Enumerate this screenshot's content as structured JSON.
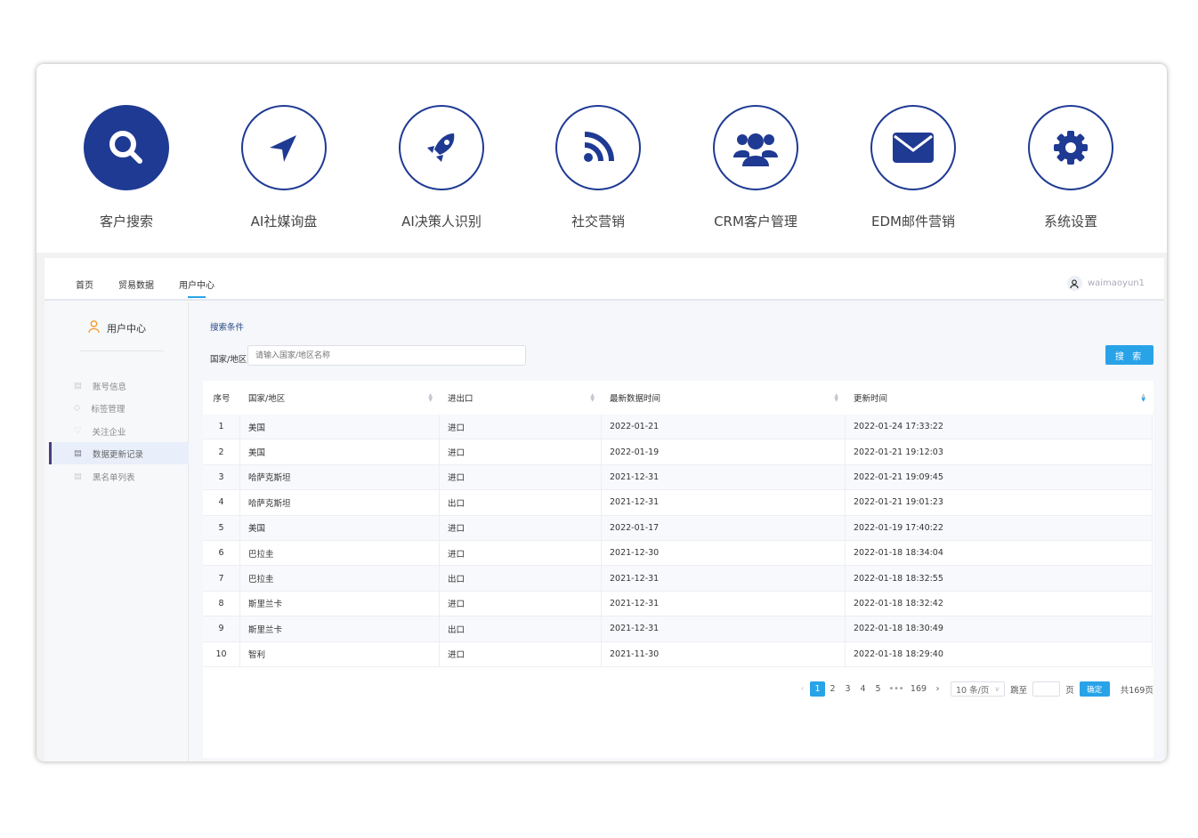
{
  "features": [
    {
      "label": "客户搜索",
      "icon": "search-icon",
      "active": true
    },
    {
      "label": "AI社媒询盘",
      "icon": "navigation-arrow-icon"
    },
    {
      "label": "AI决策人识别",
      "icon": "rocket-icon"
    },
    {
      "label": "社交营销",
      "icon": "rss-icon"
    },
    {
      "label": "CRM客户管理",
      "icon": "users-icon"
    },
    {
      "label": "EDM邮件营销",
      "icon": "envelope-icon"
    },
    {
      "label": "系统设置",
      "icon": "gear-icon"
    }
  ],
  "nav": {
    "tabs": [
      "首页",
      "贸易数据",
      "用户中心"
    ],
    "active_tab": "用户中心",
    "username": "waimaoyun1"
  },
  "sidebar": {
    "title": "用户中心",
    "items": [
      {
        "label": "账号信息",
        "icon": "id-card-icon"
      },
      {
        "label": "标签管理",
        "icon": "tag-icon"
      },
      {
        "label": "关注企业",
        "icon": "heart-icon"
      },
      {
        "label": "数据更新记录",
        "icon": "list-icon",
        "active": true
      },
      {
        "label": "黑名单列表",
        "icon": "list-icon"
      }
    ]
  },
  "search": {
    "title": "搜索条件",
    "field_label": "国家/地区",
    "placeholder": "请输入国家/地区名称",
    "button": "搜 索"
  },
  "table": {
    "columns": [
      "序号",
      "国家/地区",
      "进出口",
      "最新数据时间",
      "更新时间"
    ],
    "rows": [
      [
        "1",
        "美国",
        "进口",
        "2022-01-21",
        "2022-01-24 17:33:22"
      ],
      [
        "2",
        "美国",
        "进口",
        "2022-01-19",
        "2022-01-21 19:12:03"
      ],
      [
        "3",
        "哈萨克斯坦",
        "进口",
        "2021-12-31",
        "2022-01-21 19:09:45"
      ],
      [
        "4",
        "哈萨克斯坦",
        "出口",
        "2021-12-31",
        "2022-01-21 19:01:23"
      ],
      [
        "5",
        "美国",
        "进口",
        "2022-01-17",
        "2022-01-19 17:40:22"
      ],
      [
        "6",
        "巴拉圭",
        "进口",
        "2021-12-30",
        "2022-01-18 18:34:04"
      ],
      [
        "7",
        "巴拉圭",
        "出口",
        "2021-12-31",
        "2022-01-18 18:32:55"
      ],
      [
        "8",
        "斯里兰卡",
        "进口",
        "2021-12-31",
        "2022-01-18 18:32:42"
      ],
      [
        "9",
        "斯里兰卡",
        "出口",
        "2021-12-31",
        "2022-01-18 18:30:49"
      ],
      [
        "10",
        "智利",
        "进口",
        "2021-11-30",
        "2022-01-18 18:29:40"
      ]
    ]
  },
  "pagination": {
    "pages": [
      "1",
      "2",
      "3",
      "4",
      "5",
      "•••",
      "169"
    ],
    "current": "1",
    "page_size": "10 条/页",
    "jump_label": "跳至",
    "page_unit": "页",
    "confirm": "确定",
    "total": "共169页"
  },
  "colors": {
    "brand": "#1f3a93",
    "accent": "#29a3e8"
  }
}
